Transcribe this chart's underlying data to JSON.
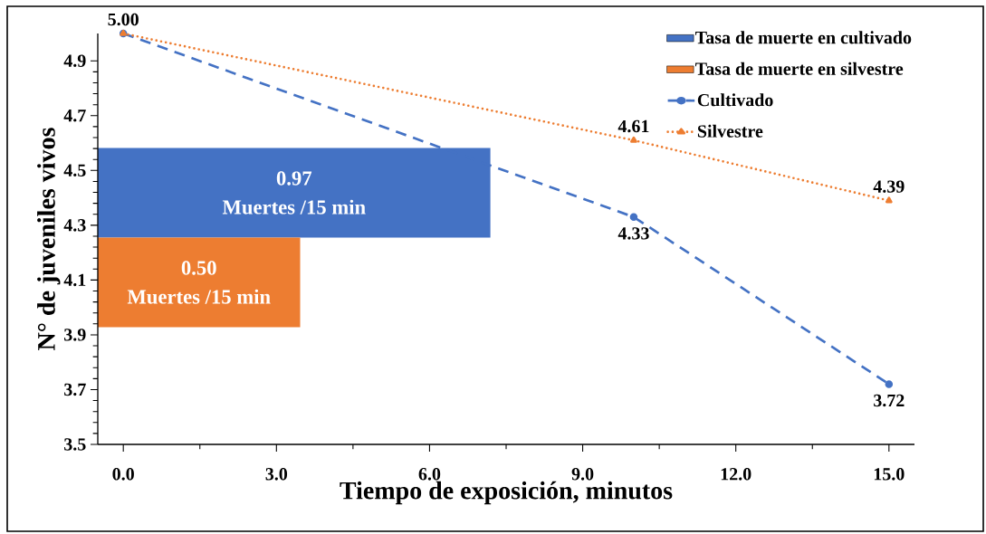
{
  "chart_data": [
    {
      "type": "line",
      "xlabel": "Tiempo de exposición, minutos",
      "ylabel": "N° de juveniles vivos",
      "xlim": [
        -0.5,
        15.5
      ],
      "xticks": [
        {
          "value": 0,
          "label": "0.0"
        },
        {
          "value": 3,
          "label": "3.0"
        },
        {
          "value": 6,
          "label": "6.0"
        },
        {
          "value": 9,
          "label": "9.0"
        },
        {
          "value": 12,
          "label": "12.0"
        },
        {
          "value": 15,
          "label": "15.0"
        }
      ],
      "ylim": [
        3.5,
        5.0
      ],
      "yticks": [
        3.5,
        3.7,
        3.9,
        4.1,
        4.3,
        4.5,
        4.7,
        4.9
      ],
      "legend": "top right",
      "series": [
        {
          "name": "Cultivado",
          "color": "#4472c4",
          "x": [
            0,
            10,
            15
          ],
          "values": [
            5.0,
            4.33,
            3.72
          ],
          "value_labels": [
            "5.00",
            "4.33",
            "3.72"
          ],
          "marker": "circle",
          "line_style": "dashed"
        },
        {
          "name": "Silvestre",
          "color": "#ed7d31",
          "x": [
            0,
            10,
            15
          ],
          "values": [
            5.0,
            4.61,
            4.39
          ],
          "value_labels": [
            null,
            "4.61",
            "4.39"
          ],
          "marker": "triangle",
          "line_style": "dotted"
        }
      ]
    },
    {
      "type": "bar",
      "orientation": "horizontal",
      "stacked": true,
      "categories": [
        null,
        null
      ],
      "legend": "top right",
      "annotations": [
        "Muertes /15 min",
        "Muertes /15 min"
      ],
      "series": [
        {
          "name": "Tasa de muerte en cultivado",
          "color": "#4472c4",
          "values": [
            0.97,
            null
          ],
          "value_labels": [
            "0.97",
            null
          ]
        },
        {
          "name": "Tasa de muerte en silvestre",
          "color": "#ed7d31",
          "values": [
            null,
            0.5
          ],
          "value_labels": [
            null,
            "0.50"
          ]
        }
      ]
    }
  ]
}
